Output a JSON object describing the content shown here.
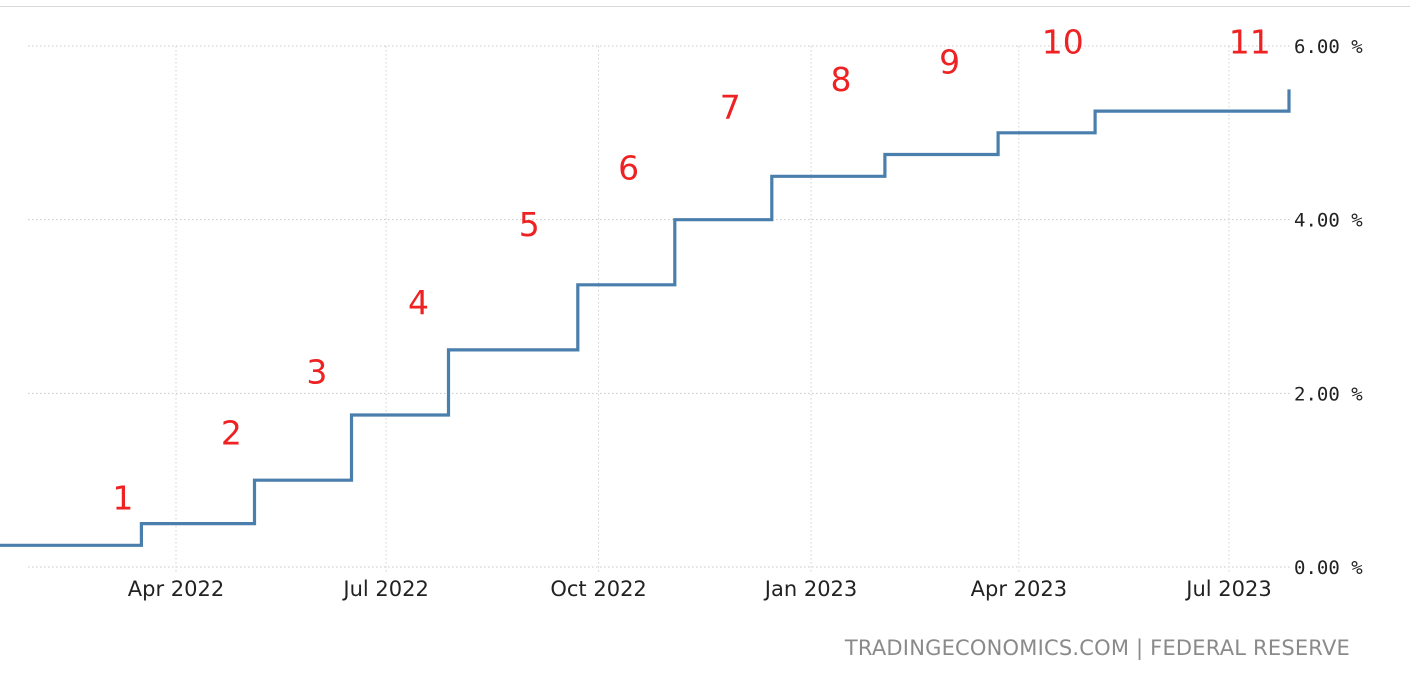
{
  "chart_data": {
    "type": "line",
    "step": true,
    "title": "",
    "xlabel": "",
    "ylabel": "",
    "ylim": [
      0,
      6
    ],
    "y_ticks": [
      {
        "value": 0,
        "label": "0.00 %"
      },
      {
        "value": 2,
        "label": "2.00 %"
      },
      {
        "value": 4,
        "label": "4.00 %"
      },
      {
        "value": 6,
        "label": "6.00 %"
      }
    ],
    "x_ticks": [
      {
        "date": "2022-04-01",
        "label": "Apr 2022"
      },
      {
        "date": "2022-07-01",
        "label": "Jul 2022"
      },
      {
        "date": "2022-10-01",
        "label": "Oct 2022"
      },
      {
        "date": "2023-01-01",
        "label": "Jan 2023"
      },
      {
        "date": "2023-04-01",
        "label": "Apr 2023"
      },
      {
        "date": "2023-07-01",
        "label": "Jul 2023"
      }
    ],
    "x_range": [
      "2022-01-01",
      "2023-08-03"
    ],
    "grid": true,
    "series": [
      {
        "color": "#4a7fad",
        "points": [
          {
            "x": "2022-01-01",
            "y": 0.25
          },
          {
            "x": "2022-03-17",
            "y": 0.5
          },
          {
            "x": "2022-05-05",
            "y": 1.0
          },
          {
            "x": "2022-06-16",
            "y": 1.75
          },
          {
            "x": "2022-07-28",
            "y": 2.5
          },
          {
            "x": "2022-09-22",
            "y": 3.25
          },
          {
            "x": "2022-11-03",
            "y": 4.0
          },
          {
            "x": "2022-12-15",
            "y": 4.5
          },
          {
            "x": "2023-02-02",
            "y": 4.75
          },
          {
            "x": "2023-03-23",
            "y": 5.0
          },
          {
            "x": "2023-05-04",
            "y": 5.25
          },
          {
            "x": "2023-07-27",
            "y": 5.5
          }
        ],
        "end": "2023-07-27"
      }
    ],
    "annotations": [
      {
        "text": "1",
        "x": "2022-03-09",
        "y": 0.8
      },
      {
        "text": "2",
        "x": "2022-04-25",
        "y": 1.55
      },
      {
        "text": "3",
        "x": "2022-06-01",
        "y": 2.25
      },
      {
        "text": "4",
        "x": "2022-07-15",
        "y": 3.05
      },
      {
        "text": "5",
        "x": "2022-09-01",
        "y": 3.95
      },
      {
        "text": "6",
        "x": "2022-10-14",
        "y": 4.6
      },
      {
        "text": "7",
        "x": "2022-11-27",
        "y": 5.3
      },
      {
        "text": "8",
        "x": "2023-01-14",
        "y": 5.62
      },
      {
        "text": "9",
        "x": "2023-03-02",
        "y": 5.82
      },
      {
        "text": "10",
        "x": "2023-04-20",
        "y": 6.05
      },
      {
        "text": "11",
        "x": "2023-07-10",
        "y": 6.05
      }
    ]
  },
  "source_text": "TRADINGECONOMICS.COM | FEDERAL RESERVE"
}
